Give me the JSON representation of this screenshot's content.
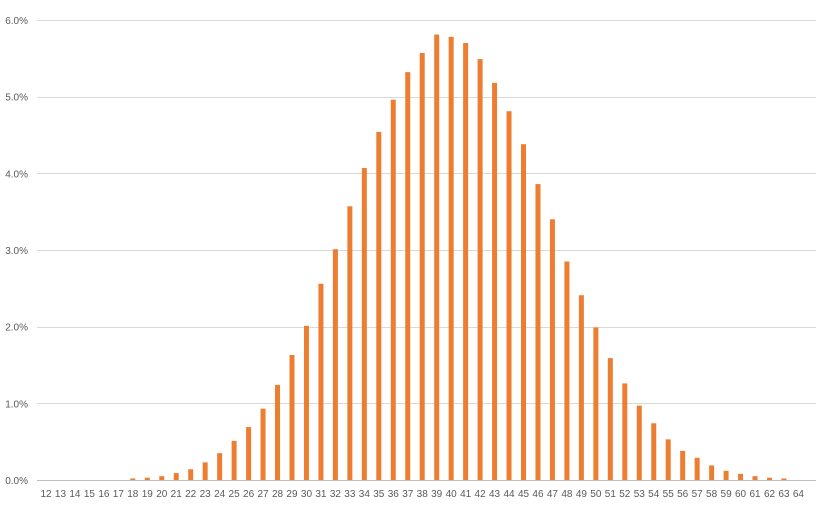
{
  "chart_data": {
    "type": "bar",
    "title": "",
    "xlabel": "",
    "ylabel": "",
    "ylim": [
      0,
      0.06
    ],
    "y_ticks": [
      0,
      0.01,
      0.02,
      0.03,
      0.04,
      0.05,
      0.06
    ],
    "y_tick_labels": [
      "0.0%",
      "1.0%",
      "2.0%",
      "3.0%",
      "4.0%",
      "5.0%",
      "6.0%"
    ],
    "y_format": "percent_1dp",
    "grid": true,
    "legend": "none",
    "bar_color": "#ED7D31",
    "categories": [
      "12",
      "13",
      "14",
      "15",
      "16",
      "17",
      "18",
      "19",
      "20",
      "21",
      "22",
      "23",
      "24",
      "25",
      "26",
      "27",
      "28",
      "29",
      "30",
      "31",
      "32",
      "33",
      "34",
      "35",
      "36",
      "37",
      "38",
      "39",
      "40",
      "41",
      "42",
      "43",
      "44",
      "45",
      "46",
      "47",
      "48",
      "49",
      "50",
      "51",
      "52",
      "53",
      "54",
      "55",
      "56",
      "57",
      "58",
      "59",
      "60",
      "61",
      "62",
      "63",
      "64"
    ],
    "values": [
      0.0,
      0.0,
      0.0,
      0.0,
      0.0,
      0.0,
      0.0002,
      0.0003,
      0.0005,
      0.0009,
      0.0014,
      0.0023,
      0.0035,
      0.0051,
      0.0069,
      0.0093,
      0.0124,
      0.0163,
      0.0201,
      0.0256,
      0.0301,
      0.0357,
      0.0407,
      0.0454,
      0.0496,
      0.0532,
      0.0557,
      0.0581,
      0.0578,
      0.057,
      0.0549,
      0.0518,
      0.0481,
      0.0438,
      0.0386,
      0.034,
      0.0285,
      0.0241,
      0.0199,
      0.0159,
      0.0126,
      0.0097,
      0.0074,
      0.0053,
      0.0038,
      0.0029,
      0.0019,
      0.0012,
      0.0008,
      0.0005,
      0.0003,
      0.0002,
      0.0
    ]
  }
}
